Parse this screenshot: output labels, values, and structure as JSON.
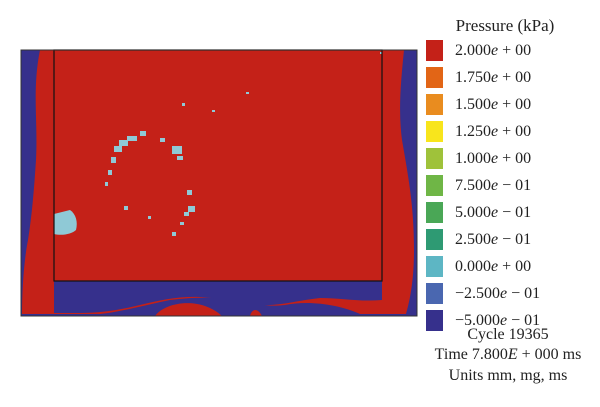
{
  "legend": {
    "title": "Pressure (kPa)",
    "entries": [
      {
        "mantissa": "2.000",
        "exp": "+ 00",
        "color": "#c42118"
      },
      {
        "mantissa": "1.750",
        "exp": "+ 00",
        "color": "#e26516"
      },
      {
        "mantissa": "1.500",
        "exp": "+ 00",
        "color": "#e98c1f"
      },
      {
        "mantissa": "1.250",
        "exp": "+ 00",
        "color": "#f8e51c"
      },
      {
        "mantissa": "1.000",
        "exp": "+ 00",
        "color": "#9fc23a"
      },
      {
        "mantissa": "7.500",
        "exp": "− 01",
        "color": "#6fb646"
      },
      {
        "mantissa": "5.000",
        "exp": "− 01",
        "color": "#4aa756"
      },
      {
        "mantissa": "2.500",
        "exp": "− 01",
        "color": "#2e9a73"
      },
      {
        "mantissa": "0.000",
        "exp": "+ 00",
        "color": "#5db6c4"
      },
      {
        "mantissa": "−2.500",
        "exp": "− 01",
        "color": "#4a67b0"
      },
      {
        "mantissa": "−5.000",
        "exp": "− 01",
        "color": "#36308c"
      }
    ]
  },
  "footer": {
    "cycle": "Cycle 19365",
    "time_prefix": "Time 7.800",
    "time_e": "E",
    "time_suffix": " + 000 ms",
    "units": "Units mm, mg, ms"
  },
  "colors": {
    "high": "#c42118",
    "low": "#36308c",
    "zero": "#8fc9d6",
    "outline": "#111111"
  }
}
